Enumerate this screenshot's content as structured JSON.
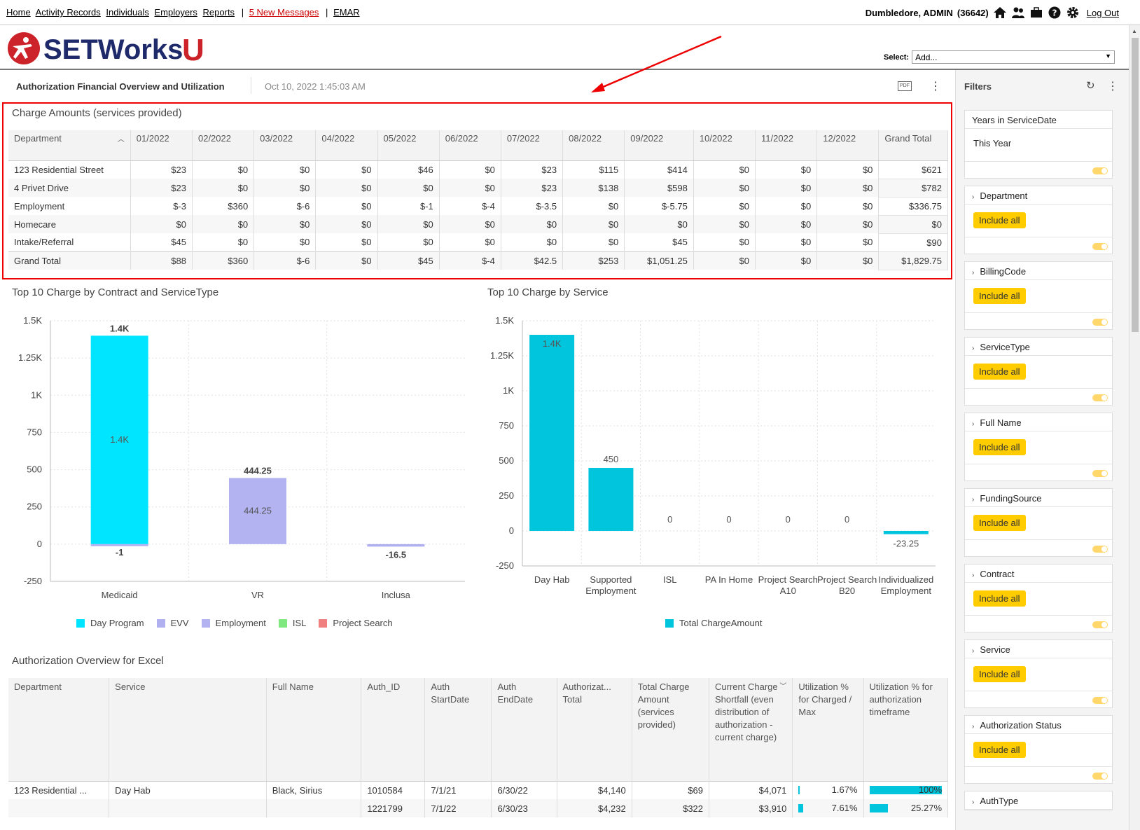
{
  "nav": {
    "links": [
      "Home",
      "Activity Records",
      "Individuals",
      "Employers",
      "Reports"
    ],
    "messages": "5 New Messages",
    "emar": "EMAR",
    "user": "Dumbledore, ADMIN",
    "user_id": "(36642)",
    "logout": "Log Out"
  },
  "brand": {
    "name": "SETWorks",
    "suffix": "U",
    "colors": {
      "red": "#cc2229",
      "navy": "#1f2a6b"
    }
  },
  "select": {
    "label": "Select:",
    "value": "Add..."
  },
  "header": {
    "title": "Authorization Financial Overview and Utilization",
    "date": "Oct 10, 2022 1:45:03 AM",
    "pdf": "PDF"
  },
  "charge": {
    "title": "Charge Amounts (services provided)",
    "columns": [
      "Department",
      "01/2022",
      "02/2022",
      "03/2022",
      "04/2022",
      "05/2022",
      "06/2022",
      "07/2022",
      "08/2022",
      "09/2022",
      "10/2022",
      "11/2022",
      "12/2022",
      "Grand Total"
    ],
    "rows": [
      [
        "123 Residential Street",
        "$23",
        "$0",
        "$0",
        "$0",
        "$46",
        "$0",
        "$23",
        "$115",
        "$414",
        "$0",
        "$0",
        "$0",
        "$621"
      ],
      [
        "4 Privet Drive",
        "$23",
        "$0",
        "$0",
        "$0",
        "$0",
        "$0",
        "$23",
        "$138",
        "$598",
        "$0",
        "$0",
        "$0",
        "$782"
      ],
      [
        "Employment",
        "$-3",
        "$360",
        "$-6",
        "$0",
        "$-1",
        "$-4",
        "$-3.5",
        "$0",
        "$-5.75",
        "$0",
        "$0",
        "$0",
        "$336.75"
      ],
      [
        "Homecare",
        "$0",
        "$0",
        "$0",
        "$0",
        "$0",
        "$0",
        "$0",
        "$0",
        "$0",
        "$0",
        "$0",
        "$0",
        "$0"
      ],
      [
        "Intake/Referral",
        "$45",
        "$0",
        "$0",
        "$0",
        "$0",
        "$0",
        "$0",
        "$0",
        "$45",
        "$0",
        "$0",
        "$0",
        "$90"
      ],
      [
        "Grand Total",
        "$88",
        "$360",
        "$-6",
        "$0",
        "$45",
        "$-4",
        "$42.5",
        "$253",
        "$1,051.25",
        "$0",
        "$0",
        "$0",
        "$1,829.75"
      ]
    ]
  },
  "chart_data": [
    {
      "type": "bar",
      "title": "Top 10 Charge by Contract and ServiceType",
      "categories": [
        "Medicaid",
        "VR",
        "Inclusa"
      ],
      "series": [
        {
          "name": "Day Program",
          "color": "#00e5ff",
          "values": [
            1400,
            0,
            0
          ]
        },
        {
          "name": "EVV",
          "color": "#b0b0f0",
          "values": [
            0,
            0,
            -16.5
          ]
        },
        {
          "name": "Employment",
          "color": "#b3b3f2",
          "values": [
            -1,
            444.25,
            0
          ]
        },
        {
          "name": "ISL",
          "color": "#7fe87f",
          "values": [
            0,
            0,
            0
          ]
        },
        {
          "name": "Project Search",
          "color": "#f08080",
          "values": [
            0,
            0,
            0
          ]
        }
      ],
      "bar_inner_labels": [
        "1.4K",
        "444.25",
        ""
      ],
      "bar_top_labels": [
        "1.4K",
        "444.25",
        ""
      ],
      "bar_bottom_labels": [
        "-1",
        "",
        "-16.5"
      ],
      "yticks": [
        "1.5K",
        "1.25K",
        "1K",
        "750",
        "500",
        "250",
        "0",
        "-250"
      ],
      "ylim": [
        -250,
        1500
      ]
    },
    {
      "type": "bar",
      "title": "Top 10 Charge by Service",
      "categories": [
        "Day Hab",
        "Supported Employment",
        "ISL",
        "PA In Home",
        "Project Search A10",
        "Project Search B20",
        "Individualized Employment"
      ],
      "series": [
        {
          "name": "Total ChargeAmount",
          "color": "#00c5dc",
          "values": [
            1400,
            450,
            0,
            0,
            0,
            0,
            -23.25
          ]
        }
      ],
      "data_labels": [
        "1.4K",
        "450",
        "0",
        "0",
        "0",
        "0",
        "-23.25"
      ],
      "yticks": [
        "1.5K",
        "1.25K",
        "1K",
        "750",
        "500",
        "250",
        "0",
        "-250"
      ],
      "ylim": [
        -250,
        1500
      ]
    }
  ],
  "auth": {
    "title": "Authorization Overview for Excel",
    "columns": [
      "Department",
      "Service",
      "Full Name",
      "Auth_ID",
      "Auth StartDate",
      "Auth EndDate",
      "Authorizat... Total",
      "Total Charge Amount (services provided)",
      "Current Charge Shortfall (even distribution of authorization - current charge)",
      "Utilization % for Charged / Max",
      "Utilization % for authorization timeframe"
    ],
    "rows": [
      {
        "dept": "123 Residential ...",
        "service": "Day Hab",
        "name": "Black, Sirius",
        "id": "1010584",
        "start": "7/1/21",
        "end": "6/30/22",
        "total": "$4,140",
        "charge": "$69",
        "shortfall": "$4,071",
        "util1": "1.67%",
        "util1_pct": 1.67,
        "util2": "100%",
        "util2_pct": 100
      },
      {
        "dept": "",
        "service": "",
        "name": "",
        "id": "1221799",
        "start": "7/1/22",
        "end": "6/30/23",
        "total": "$4,232",
        "charge": "$322",
        "shortfall": "$3,910",
        "util1": "7.61%",
        "util1_pct": 7.61,
        "util2": "25.27%",
        "util2_pct": 25.27
      }
    ]
  },
  "filters": {
    "title": "Filters",
    "cards": [
      {
        "label": "Years in ServiceDate",
        "value": "This Year",
        "chevron": false
      },
      {
        "label": "Department",
        "value": "Include all",
        "chevron": true
      },
      {
        "label": "BillingCode",
        "value": "Include all",
        "chevron": true
      },
      {
        "label": "ServiceType",
        "value": "Include all",
        "chevron": true
      },
      {
        "label": "Full Name",
        "value": "Include all",
        "chevron": true
      },
      {
        "label": "FundingSource",
        "value": "Include all",
        "chevron": true
      },
      {
        "label": "Contract",
        "value": "Include all",
        "chevron": true
      },
      {
        "label": "Service",
        "value": "Include all",
        "chevron": true
      },
      {
        "label": "Authorization Status",
        "value": "Include all",
        "chevron": true
      },
      {
        "label": "AuthType",
        "value": "",
        "chevron": true
      }
    ]
  }
}
